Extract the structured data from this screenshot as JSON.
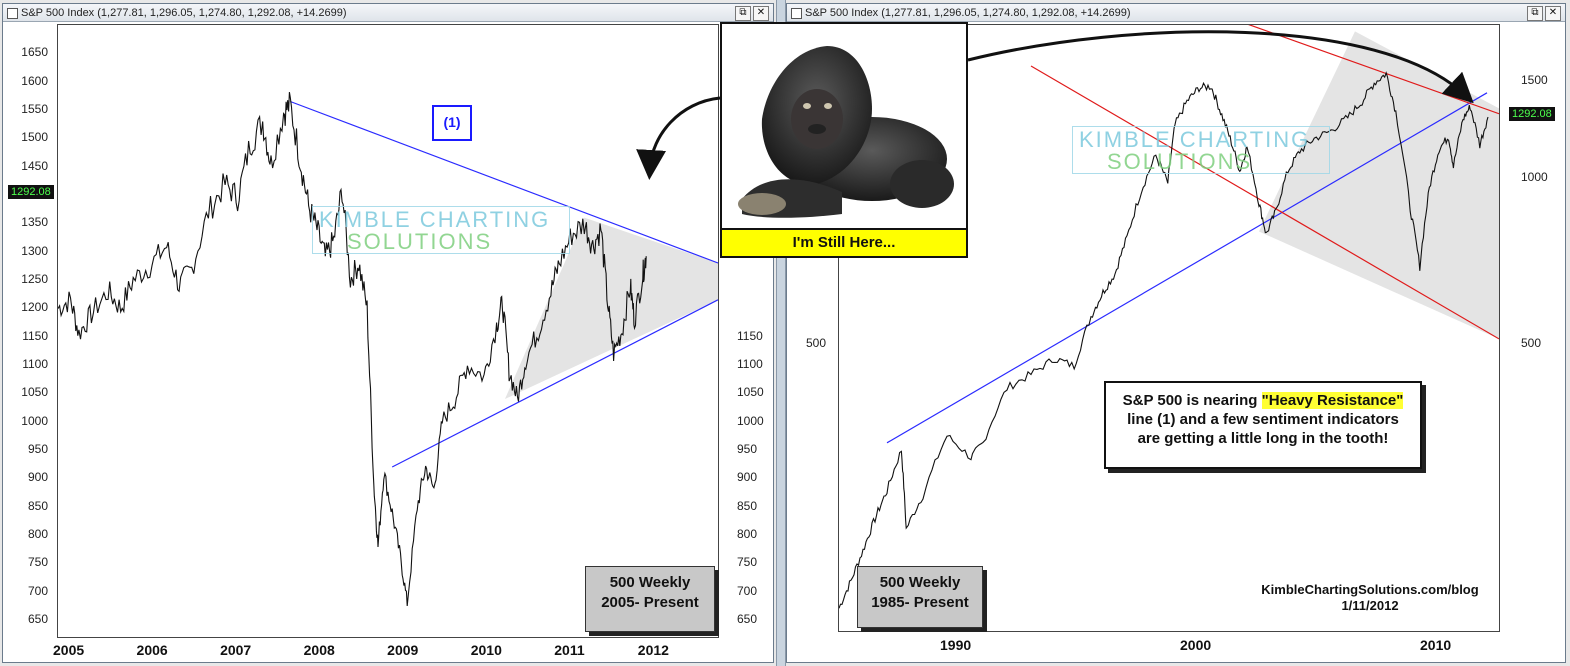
{
  "left_window": {
    "title": "S&P 500 Index (1,277.81, 1,296.05, 1,274.80, 1,292.08, +14.2699)",
    "btn_restore": "⧉",
    "btn_close": "✕",
    "price_tag": "1292.08",
    "box_label": "(1)",
    "info_line1": "500 Weekly",
    "info_line2": "2005- Present"
  },
  "right_window": {
    "title": "S&P 500 Index (1,277.81, 1,296.05, 1,274.80, 1,292.08, +14.2699)",
    "btn_restore": "⧉",
    "btn_close": "✕",
    "price_tag": "1292.08",
    "info_line1": "500 Weekly",
    "info_line2": "1985- Present",
    "note_pre": "S&P 500 is nearing ",
    "note_highlight": "\"Heavy Resistance\"",
    "note_rest1": "line (1) and a few sentiment indicators",
    "note_rest2": "are getting a little long in the tooth!",
    "credit_line1": "KimbleChartingSolutions.com/blog",
    "credit_line2": "1/11/2012"
  },
  "watermark": {
    "line1": "KIMBLE CHARTING",
    "line2": "SOLUTIONS"
  },
  "gorilla": {
    "caption": "I'm Still Here..."
  },
  "colors": {
    "support": "#2b2bff",
    "channel": "#e01b1b",
    "price": "#111111",
    "shade": "#e4e4e4"
  },
  "chart_data": [
    {
      "type": "line",
      "title": "S&P 500 Index",
      "subtitle": "500 Weekly 2005- Present",
      "ylim": [
        620,
        1700
      ],
      "yticks": [
        650,
        700,
        750,
        800,
        850,
        900,
        950,
        1000,
        1050,
        1100,
        1150,
        1200,
        1250,
        1300,
        1350,
        1400,
        1450,
        1500,
        1550,
        1600,
        1650
      ],
      "right_yticks": [
        650,
        700,
        750,
        800,
        850,
        900,
        950,
        1000,
        1050,
        1100,
        1150
      ],
      "xlim": [
        2005,
        2012.9
      ],
      "xticks": [
        "2005",
        "2006",
        "2007",
        "2008",
        "2009",
        "2010",
        "2011",
        "2012"
      ],
      "series": [
        {
          "values": [
            [
              2005.0,
              1200
            ],
            [
              2005.15,
              1215
            ],
            [
              2005.25,
              1155
            ],
            [
              2005.4,
              1190
            ],
            [
              2005.6,
              1230
            ],
            [
              2005.75,
              1200
            ],
            [
              2005.9,
              1250
            ],
            [
              2006.1,
              1275
            ],
            [
              2006.3,
              1310
            ],
            [
              2006.45,
              1240
            ],
            [
              2006.6,
              1270
            ],
            [
              2006.8,
              1370
            ],
            [
              2007.0,
              1420
            ],
            [
              2007.15,
              1395
            ],
            [
              2007.3,
              1490
            ],
            [
              2007.45,
              1530
            ],
            [
              2007.55,
              1455
            ],
            [
              2007.7,
              1545
            ],
            [
              2007.78,
              1560
            ],
            [
              2007.9,
              1460
            ],
            [
              2008.0,
              1380
            ],
            [
              2008.1,
              1340
            ],
            [
              2008.2,
              1290
            ],
            [
              2008.3,
              1320
            ],
            [
              2008.4,
              1410
            ],
            [
              2008.5,
              1250
            ],
            [
              2008.6,
              1280
            ],
            [
              2008.7,
              1200
            ],
            [
              2008.78,
              890
            ],
            [
              2008.83,
              780
            ],
            [
              2008.9,
              910
            ],
            [
              2009.0,
              840
            ],
            [
              2009.1,
              760
            ],
            [
              2009.18,
              680
            ],
            [
              2009.3,
              850
            ],
            [
              2009.4,
              920
            ],
            [
              2009.5,
              880
            ],
            [
              2009.6,
              1000
            ],
            [
              2009.75,
              1040
            ],
            [
              2009.9,
              1100
            ],
            [
              2010.1,
              1080
            ],
            [
              2010.25,
              1170
            ],
            [
              2010.32,
              1210
            ],
            [
              2010.4,
              1090
            ],
            [
              2010.5,
              1040
            ],
            [
              2010.6,
              1110
            ],
            [
              2010.75,
              1160
            ],
            [
              2010.9,
              1230
            ],
            [
              2011.0,
              1280
            ],
            [
              2011.15,
              1330
            ],
            [
              2011.3,
              1350
            ],
            [
              2011.4,
              1310
            ],
            [
              2011.5,
              1340
            ],
            [
              2011.58,
              1210
            ],
            [
              2011.65,
              1120
            ],
            [
              2011.75,
              1160
            ],
            [
              2011.85,
              1240
            ],
            [
              2011.9,
              1180
            ],
            [
              2012.0,
              1260
            ],
            [
              2012.04,
              1292
            ]
          ]
        },
        {
          "name": "(1)",
          "values": [
            [
              2007.78,
              1565
            ],
            [
              2012.9,
              1280
            ]
          ]
        },
        {
          "values": [
            [
              2009.0,
              920
            ],
            [
              2012.9,
              1215
            ]
          ]
        }
      ]
    },
    {
      "type": "line",
      "title": "S&P 500 Index",
      "subtitle": "500 Weekly 1985- Present",
      "scale": "log",
      "ylim": [
        150,
        1900
      ],
      "yticks": [
        500,
        1000,
        1500
      ],
      "xlim": [
        1985,
        2012.5
      ],
      "xticks": [
        "1990",
        "2000",
        "2010"
      ],
      "series": [
        {
          "values": [
            [
              1985.0,
              165
            ],
            [
              1985.5,
              185
            ],
            [
              1986.0,
              210
            ],
            [
              1986.5,
              240
            ],
            [
              1987.0,
              270
            ],
            [
              1987.6,
              320
            ],
            [
              1987.8,
              230
            ],
            [
              1988.5,
              265
            ],
            [
              1989.5,
              340
            ],
            [
              1990.5,
              310
            ],
            [
              1991.0,
              330
            ],
            [
              1992.0,
              415
            ],
            [
              1993.0,
              440
            ],
            [
              1994.0,
              470
            ],
            [
              1994.8,
              455
            ],
            [
              1995.5,
              560
            ],
            [
              1996.0,
              620
            ],
            [
              1996.5,
              670
            ],
            [
              1997.0,
              780
            ],
            [
              1997.6,
              950
            ],
            [
              1998.2,
              1100
            ],
            [
              1998.7,
              980
            ],
            [
              1999.0,
              1250
            ],
            [
              1999.5,
              1380
            ],
            [
              2000.0,
              1460
            ],
            [
              2000.5,
              1470
            ],
            [
              2000.9,
              1320
            ],
            [
              2001.3,
              1180
            ],
            [
              2001.7,
              1030
            ],
            [
              2002.0,
              1140
            ],
            [
              2002.5,
              900
            ],
            [
              2002.8,
              790
            ],
            [
              2003.2,
              870
            ],
            [
              2003.7,
              1030
            ],
            [
              2004.2,
              1120
            ],
            [
              2004.8,
              1180
            ],
            [
              2005.5,
              1220
            ],
            [
              2006.2,
              1290
            ],
            [
              2006.8,
              1380
            ],
            [
              2007.3,
              1490
            ],
            [
              2007.8,
              1550
            ],
            [
              2008.2,
              1320
            ],
            [
              2008.8,
              880
            ],
            [
              2009.2,
              690
            ],
            [
              2009.6,
              960
            ],
            [
              2010.0,
              1130
            ],
            [
              2010.4,
              1190
            ],
            [
              2010.6,
              1050
            ],
            [
              2011.0,
              1280
            ],
            [
              2011.3,
              1350
            ],
            [
              2011.7,
              1150
            ],
            [
              2012.04,
              1292
            ]
          ]
        },
        {
          "values": [
            [
              1987.0,
              330
            ],
            [
              2012.0,
              1430
            ]
          ]
        },
        {
          "values": [
            [
              1993.0,
              1600
            ],
            [
              2012.5,
              510
            ]
          ]
        },
        {
          "values": [
            [
              2000.0,
              2050
            ],
            [
              2012.5,
              1310
            ]
          ]
        }
      ]
    }
  ]
}
